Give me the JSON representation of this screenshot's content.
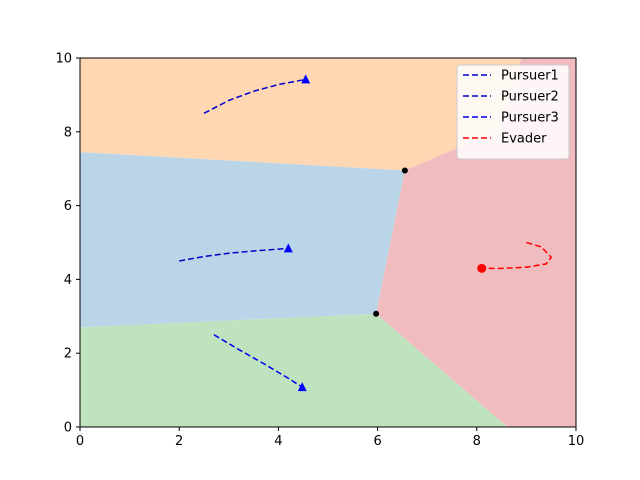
{
  "chart_data": {
    "type": "line",
    "title": "",
    "xlabel": "",
    "ylabel": "",
    "xlim": [
      0,
      10
    ],
    "ylim": [
      0,
      10
    ],
    "xticks": [
      "0",
      "2",
      "4",
      "6",
      "8",
      "10"
    ],
    "yticks": [
      "0",
      "2",
      "4",
      "6",
      "8",
      "10"
    ],
    "grid": false,
    "legend_position": "top-right",
    "regions": [
      {
        "name": "Pursuer1 region",
        "color": "#ffd7b3",
        "polygon": [
          [
            0,
            10
          ],
          [
            8.9,
            10
          ],
          [
            8.45,
            8.05
          ],
          [
            6.55,
            6.95
          ],
          [
            0,
            7.45
          ]
        ]
      },
      {
        "name": "Pursuer2 region",
        "color": "#bad5e8",
        "polygon": [
          [
            0,
            7.45
          ],
          [
            6.55,
            6.95
          ],
          [
            5.97,
            3.07
          ],
          [
            0,
            2.7
          ]
        ]
      },
      {
        "name": "Pursuer3 region",
        "color": "#bfe2bf",
        "polygon": [
          [
            0,
            2.7
          ],
          [
            5.97,
            3.07
          ],
          [
            8.62,
            0
          ],
          [
            0,
            0
          ]
        ]
      },
      {
        "name": "Evader region",
        "color": "#f1bcbf",
        "polygon": [
          [
            5.97,
            3.07
          ],
          [
            6.55,
            6.95
          ],
          [
            8.45,
            8.05
          ],
          [
            8.9,
            10
          ],
          [
            10,
            10
          ],
          [
            10,
            0
          ],
          [
            8.62,
            0
          ]
        ]
      }
    ],
    "vertices": [
      [
        6.55,
        6.95
      ],
      [
        5.97,
        3.07
      ]
    ],
    "series": [
      {
        "name": "Pursuer1",
        "color": "#0000cc",
        "marker": "triangle",
        "x": [
          2.5,
          3.0,
          3.5,
          4.0,
          4.55
        ],
        "y": [
          8.5,
          8.85,
          9.1,
          9.28,
          9.42
        ]
      },
      {
        "name": "Pursuer2",
        "color": "#0000cc",
        "marker": "triangle",
        "x": [
          2.0,
          2.5,
          3.0,
          3.5,
          4.0,
          4.2
        ],
        "y": [
          4.5,
          4.62,
          4.71,
          4.77,
          4.82,
          4.84
        ]
      },
      {
        "name": "Pursuer3",
        "color": "#0000ee",
        "marker": "triangle",
        "x": [
          2.7,
          3.2,
          3.7,
          4.2,
          4.48
        ],
        "y": [
          2.5,
          2.1,
          1.72,
          1.32,
          1.08
        ]
      },
      {
        "name": "Evader",
        "color": "#ff0000",
        "marker": "circle",
        "x": [
          9.0,
          9.3,
          9.5,
          9.4,
          9.0,
          8.5,
          8.1
        ],
        "y": [
          5.0,
          4.88,
          4.6,
          4.42,
          4.33,
          4.3,
          4.3
        ]
      }
    ]
  }
}
